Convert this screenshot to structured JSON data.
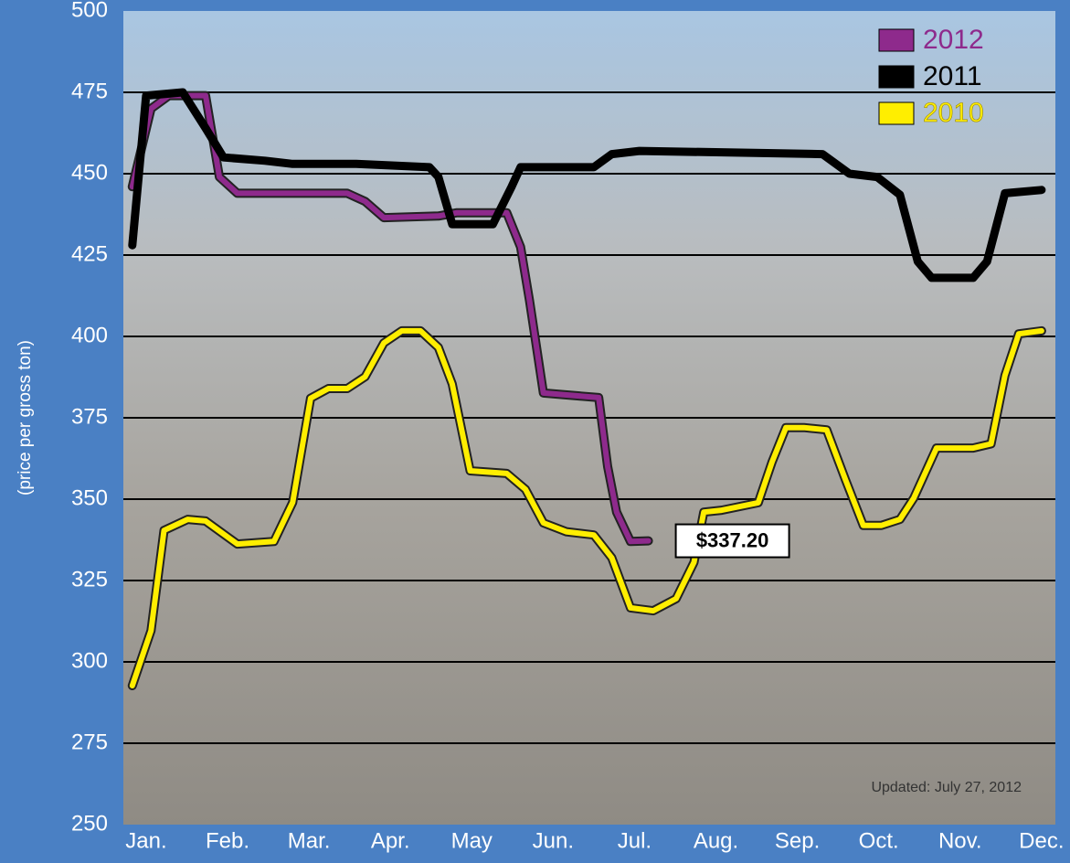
{
  "chart_data": {
    "type": "line",
    "y_label": "(price per gross ton)",
    "annotation": "$337.20",
    "footnote": "Updated: July 27, 2012",
    "xlim": [
      0.72,
      12.17
    ],
    "xticks": [
      {
        "value": 1,
        "label": "Jan."
      },
      {
        "value": 2,
        "label": "Feb."
      },
      {
        "value": 3,
        "label": "Mar."
      },
      {
        "value": 4,
        "label": "Apr."
      },
      {
        "value": 5,
        "label": "May"
      },
      {
        "value": 6,
        "label": "Jun."
      },
      {
        "value": 7,
        "label": "Jul."
      },
      {
        "value": 8,
        "label": "Aug."
      },
      {
        "value": 9,
        "label": "Sep."
      },
      {
        "value": 10,
        "label": "Oct."
      },
      {
        "value": 11,
        "label": "Nov."
      },
      {
        "value": 12,
        "label": "Dec."
      }
    ],
    "ylim": [
      250,
      500
    ],
    "yticks": [
      250,
      275,
      300,
      325,
      350,
      375,
      400,
      425,
      450,
      475,
      500
    ],
    "grid": true,
    "legend": "top-right",
    "series": [
      {
        "name": "2012",
        "color": "#8e2a8c",
        "x": [
          0.83,
          1.06,
          1.28,
          1.73,
          1.9,
          2.12,
          3.47,
          3.69,
          3.92,
          4.59,
          4.82,
          5.43,
          5.6,
          5.71,
          5.88,
          6.56,
          6.67,
          6.78,
          6.95,
          7.17
        ],
        "values": [
          446,
          470,
          474,
          474,
          449,
          444,
          444,
          441.5,
          436.5,
          437,
          438,
          438,
          427.5,
          411,
          382.6,
          381.2,
          360,
          346,
          337,
          337.2
        ]
      },
      {
        "name": "2011",
        "color": "#000000",
        "x": [
          0.83,
          1.0,
          1.45,
          1.73,
          1.95,
          2.46,
          2.8,
          3.58,
          4.48,
          4.59,
          4.76,
          5.26,
          5.49,
          5.6,
          6.5,
          6.72,
          7.06,
          9.31,
          9.64,
          9.98,
          10.26,
          10.48,
          10.65,
          11.16,
          11.33,
          11.55,
          12.0
        ],
        "values": [
          428,
          474,
          475,
          464,
          455,
          454,
          453,
          453,
          452,
          449,
          434.5,
          434.5,
          446,
          452,
          452,
          456,
          457,
          456,
          450,
          449,
          443.5,
          423,
          418,
          418,
          423,
          444,
          445
        ]
      },
      {
        "name": "2010",
        "color": "#ffee00",
        "x": [
          0.83,
          1.06,
          1.22,
          1.51,
          1.73,
          2.12,
          2.57,
          2.8,
          3.02,
          3.24,
          3.47,
          3.69,
          3.92,
          4.14,
          4.37,
          4.59,
          4.76,
          4.98,
          5.43,
          5.66,
          5.88,
          6.16,
          6.5,
          6.72,
          6.95,
          7.23,
          7.51,
          7.73,
          7.85,
          8.07,
          8.52,
          8.69,
          8.86,
          9.08,
          9.36,
          9.59,
          9.81,
          10.03,
          10.26,
          10.43,
          10.71,
          11.16,
          11.38,
          11.55,
          11.72,
          12.0
        ],
        "values": [
          292.7,
          309.6,
          340.4,
          343.8,
          343.3,
          336.2,
          337,
          349,
          381,
          384,
          384,
          387.6,
          398,
          401.7,
          401.7,
          396.6,
          385.4,
          358.7,
          357.9,
          353,
          342.7,
          340,
          339,
          332,
          316.6,
          315.7,
          319.4,
          330.6,
          346,
          346.6,
          348.9,
          361.5,
          372,
          372,
          371.3,
          356,
          341.9,
          341.9,
          343.8,
          350.3,
          365.7,
          365.7,
          367,
          388,
          400.8,
          401.7
        ]
      }
    ]
  }
}
